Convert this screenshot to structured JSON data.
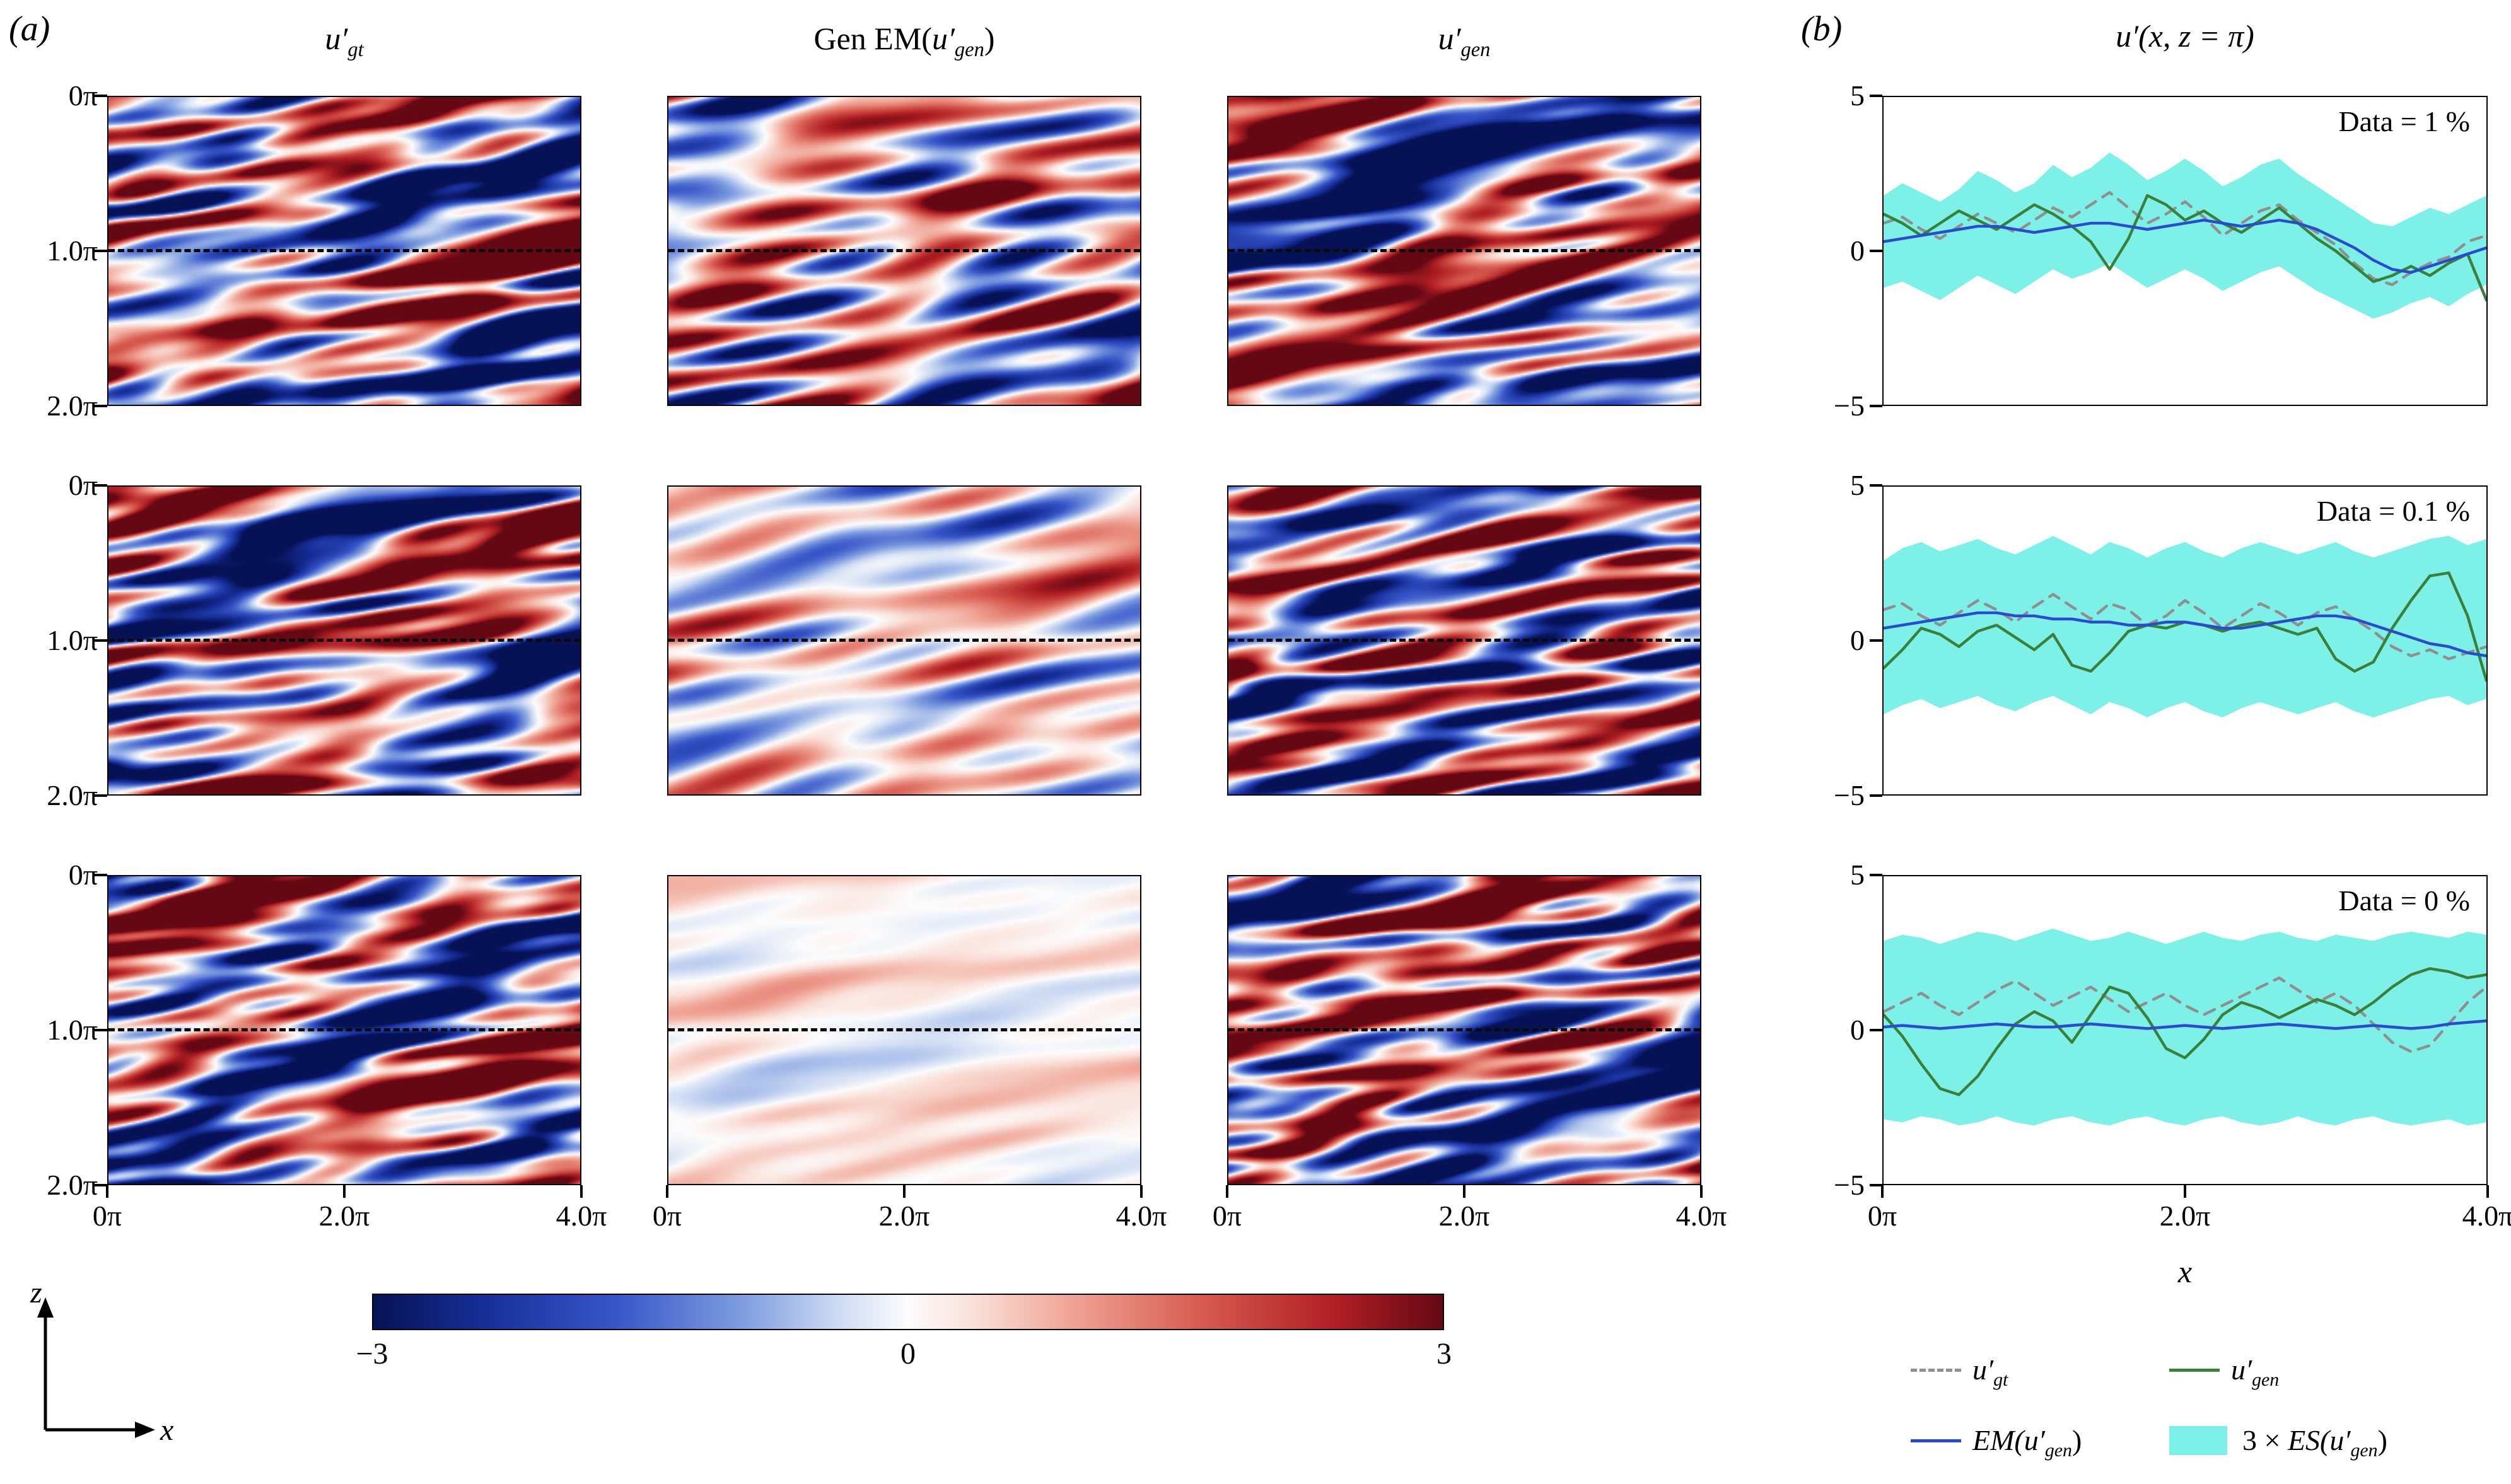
{
  "figure": {
    "panel_a": {
      "label": "(a)",
      "col_titles": [
        {
          "base": "u",
          "prime": "′",
          "sub": "gt"
        },
        {
          "pre": "Gen EM(",
          "base": "u",
          "prime": "′",
          "sub": "gen",
          "post": ")"
        },
        {
          "base": "u",
          "prime": "′",
          "sub": "gen"
        }
      ],
      "y_ticks": [
        "0π",
        "1.0π",
        "2.0π"
      ],
      "x_ticks": [
        "0π",
        "2.0π",
        "4.0π"
      ],
      "colorbar_ticks": [
        "−3",
        "0",
        "3"
      ],
      "axis_vertical": "z",
      "axis_horizontal": "x"
    },
    "panel_b": {
      "label": "(b)",
      "title": "u′(x, z = π)",
      "y_ticks": [
        "5",
        "0",
        "−5"
      ],
      "x_ticks": [
        "0π",
        "2.0π",
        "4.0π"
      ],
      "x_label": "x",
      "annotations": [
        "Data = 1 %",
        "Data = 0.1 %",
        "Data = 0 %"
      ],
      "legend": [
        {
          "parts": {
            "base": "u",
            "prime": "′",
            "sub": "gt"
          }
        },
        {
          "parts": {
            "base": "u",
            "prime": "′",
            "sub": "gen"
          }
        },
        {
          "parts": {
            "pre_i": "EM(",
            "base": "u",
            "prime": "′",
            "sub": "gen",
            "post": ")"
          }
        },
        {
          "parts": {
            "pre": "3 × ",
            "pre_i": "ES(",
            "base": "u",
            "prime": "′",
            "sub": "gen",
            "post": ")"
          }
        }
      ]
    }
  },
  "colors": {
    "green_line": "#3a8038",
    "blue_line": "#2a4bd0",
    "gray_dash": "#8f8f8f",
    "cyan_band": "#7df0e8",
    "colormap": [
      [
        -1,
        6,
        18,
        85
      ],
      [
        -0.8,
        22,
        45,
        150
      ],
      [
        -0.55,
        55,
        85,
        200
      ],
      [
        -0.3,
        130,
        160,
        225
      ],
      [
        -0.12,
        210,
        222,
        244
      ],
      [
        0,
        252,
        252,
        252
      ],
      [
        0.12,
        250,
        225,
        218
      ],
      [
        0.3,
        240,
        165,
        150
      ],
      [
        0.55,
        215,
        90,
        80
      ],
      [
        0.8,
        175,
        30,
        35
      ],
      [
        1,
        100,
        8,
        20
      ]
    ]
  },
  "chart_data": [
    {
      "type": "line",
      "title": "Data = 1 %",
      "xlabel": "x",
      "ylabel": "u'(x, z = π)",
      "xlim": [
        0,
        4
      ],
      "ylim": [
        -5,
        5
      ],
      "x_unit": "π",
      "x_start": 0,
      "x_step": 0.125,
      "legend_position": "bottom",
      "series": [
        {
          "name": "u_gt",
          "style": "dashed-gray",
          "values": [
            0.9,
            1.1,
            0.7,
            0.4,
            0.8,
            1.2,
            0.9,
            0.6,
            1.0,
            1.4,
            1.1,
            1.5,
            1.9,
            1.4,
            0.9,
            1.2,
            1.6,
            1.1,
            0.5,
            0.9,
            1.3,
            1.5,
            1.0,
            0.6,
            0.2,
            -0.4,
            -0.9,
            -1.1,
            -0.7,
            -0.4,
            -0.2,
            0.3,
            0.5
          ]
        },
        {
          "name": "u_gen",
          "style": "green",
          "values": [
            1.2,
            0.9,
            0.5,
            0.9,
            1.3,
            1.0,
            0.7,
            1.1,
            1.5,
            1.2,
            0.8,
            0.3,
            -0.6,
            0.4,
            1.8,
            1.5,
            1.0,
            1.3,
            0.9,
            0.6,
            1.0,
            1.4,
            0.9,
            0.4,
            0.0,
            -0.5,
            -1.0,
            -0.8,
            -0.5,
            -0.8,
            -0.4,
            -0.1,
            -1.6
          ]
        },
        {
          "name": "EM_u_gen",
          "style": "blue",
          "values": [
            0.3,
            0.4,
            0.5,
            0.6,
            0.7,
            0.8,
            0.8,
            0.7,
            0.6,
            0.7,
            0.8,
            0.9,
            0.9,
            0.8,
            0.7,
            0.8,
            0.9,
            1.0,
            0.9,
            0.8,
            0.9,
            1.0,
            0.9,
            0.7,
            0.4,
            0.1,
            -0.3,
            -0.6,
            -0.7,
            -0.5,
            -0.3,
            -0.1,
            0.1
          ]
        },
        {
          "name": "3xES_u_gen",
          "style": "cyan-band",
          "upper": [
            1.8,
            2.2,
            1.9,
            1.6,
            2.0,
            2.6,
            2.3,
            1.9,
            2.2,
            2.8,
            2.4,
            2.7,
            3.2,
            2.8,
            2.3,
            2.6,
            3.0,
            2.6,
            2.1,
            2.4,
            2.8,
            3.0,
            2.5,
            2.1,
            1.7,
            1.3,
            0.9,
            0.8,
            1.1,
            1.4,
            1.2,
            1.5,
            1.8
          ],
          "lower": [
            -1.2,
            -1.0,
            -1.3,
            -1.6,
            -1.2,
            -0.8,
            -1.1,
            -1.4,
            -1.0,
            -0.6,
            -0.9,
            -0.7,
            -0.4,
            -0.8,
            -1.2,
            -0.9,
            -0.6,
            -0.9,
            -1.3,
            -1.0,
            -0.7,
            -0.5,
            -0.9,
            -1.3,
            -1.6,
            -1.9,
            -2.2,
            -2.0,
            -1.7,
            -1.5,
            -1.8,
            -1.4,
            -1.1
          ]
        }
      ]
    },
    {
      "type": "line",
      "title": "Data = 0.1 %",
      "xlabel": "x",
      "ylabel": "u'(x, z = π)",
      "xlim": [
        0,
        4
      ],
      "ylim": [
        -5,
        5
      ],
      "x_unit": "π",
      "x_start": 0,
      "x_step": 0.125,
      "series": [
        {
          "name": "u_gt",
          "style": "dashed-gray",
          "values": [
            1.0,
            1.2,
            0.8,
            0.5,
            0.9,
            1.3,
            1.0,
            0.6,
            1.1,
            1.5,
            1.1,
            0.7,
            1.2,
            1.0,
            0.5,
            0.8,
            1.3,
            0.9,
            0.4,
            0.8,
            1.2,
            0.9,
            0.5,
            0.9,
            1.1,
            0.7,
            0.3,
            -0.2,
            -0.5,
            -0.3,
            -0.6,
            -0.4,
            -0.2
          ]
        },
        {
          "name": "u_gen",
          "style": "green",
          "values": [
            -0.9,
            -0.3,
            0.4,
            0.2,
            -0.2,
            0.3,
            0.5,
            0.1,
            -0.3,
            0.2,
            -0.8,
            -1.0,
            -0.4,
            0.3,
            0.5,
            0.4,
            0.6,
            0.5,
            0.3,
            0.5,
            0.6,
            0.4,
            0.2,
            0.4,
            -0.6,
            -1.0,
            -0.7,
            0.4,
            1.3,
            2.1,
            2.2,
            0.8,
            -1.3
          ]
        },
        {
          "name": "EM_u_gen",
          "style": "blue",
          "values": [
            0.4,
            0.5,
            0.6,
            0.7,
            0.8,
            0.9,
            0.9,
            0.8,
            0.8,
            0.7,
            0.7,
            0.6,
            0.6,
            0.5,
            0.5,
            0.6,
            0.6,
            0.5,
            0.4,
            0.4,
            0.5,
            0.6,
            0.7,
            0.8,
            0.8,
            0.7,
            0.5,
            0.3,
            0.1,
            -0.1,
            -0.2,
            -0.4,
            -0.5
          ]
        },
        {
          "name": "3xES_u_gen",
          "style": "cyan-band",
          "upper": [
            2.6,
            3.0,
            3.2,
            2.9,
            3.1,
            3.3,
            3.0,
            2.8,
            3.1,
            3.4,
            3.1,
            2.8,
            3.2,
            3.0,
            2.7,
            3.0,
            3.2,
            2.9,
            2.7,
            3.0,
            3.2,
            3.0,
            2.8,
            3.0,
            3.2,
            2.9,
            2.7,
            2.9,
            3.1,
            3.3,
            3.4,
            3.1,
            3.3
          ],
          "lower": [
            -2.4,
            -2.1,
            -1.9,
            -2.2,
            -2.0,
            -1.8,
            -2.1,
            -2.3,
            -2.0,
            -1.8,
            -2.1,
            -2.4,
            -2.0,
            -2.2,
            -2.5,
            -2.2,
            -2.0,
            -2.3,
            -2.5,
            -2.2,
            -2.0,
            -2.2,
            -2.4,
            -2.2,
            -2.0,
            -2.3,
            -2.5,
            -2.3,
            -2.1,
            -1.9,
            -1.8,
            -2.1,
            -1.9
          ]
        }
      ]
    },
    {
      "type": "line",
      "title": "Data = 0 %",
      "xlabel": "x",
      "ylabel": "u'(x, z = π)",
      "xlim": [
        0,
        4
      ],
      "ylim": [
        -5,
        5
      ],
      "x_unit": "π",
      "x_start": 0,
      "x_step": 0.125,
      "series": [
        {
          "name": "u_gt",
          "style": "dashed-gray",
          "values": [
            0.6,
            0.9,
            1.2,
            0.8,
            0.5,
            0.9,
            1.3,
            1.6,
            1.2,
            0.8,
            1.1,
            1.4,
            1.0,
            0.6,
            0.9,
            1.2,
            0.8,
            0.5,
            0.8,
            1.1,
            1.4,
            1.7,
            1.3,
            0.9,
            1.2,
            0.8,
            0.2,
            -0.4,
            -0.7,
            -0.5,
            0.2,
            0.9,
            1.4
          ]
        },
        {
          "name": "u_gen",
          "style": "green",
          "values": [
            0.5,
            -0.2,
            -1.1,
            -1.9,
            -2.1,
            -1.5,
            -0.6,
            0.2,
            0.6,
            0.3,
            -0.4,
            0.5,
            1.4,
            1.2,
            0.4,
            -0.6,
            -0.9,
            -0.3,
            0.5,
            0.9,
            0.7,
            0.4,
            0.7,
            1.0,
            0.8,
            0.5,
            0.9,
            1.4,
            1.8,
            2.0,
            1.9,
            1.7,
            1.8
          ]
        },
        {
          "name": "EM_u_gen",
          "style": "blue",
          "values": [
            0.1,
            0.15,
            0.1,
            0.05,
            0.1,
            0.15,
            0.2,
            0.15,
            0.1,
            0.1,
            0.15,
            0.2,
            0.15,
            0.1,
            0.05,
            0.1,
            0.15,
            0.1,
            0.05,
            0.1,
            0.15,
            0.2,
            0.15,
            0.1,
            0.05,
            0.1,
            0.15,
            0.1,
            0.05,
            0.1,
            0.2,
            0.25,
            0.3
          ]
        },
        {
          "name": "3xES_u_gen",
          "style": "cyan-band",
          "upper": [
            2.9,
            3.1,
            3.0,
            2.8,
            3.0,
            3.2,
            3.1,
            2.9,
            3.1,
            3.3,
            3.1,
            2.9,
            3.0,
            3.2,
            3.0,
            2.8,
            3.0,
            3.2,
            3.0,
            2.9,
            3.1,
            3.2,
            3.0,
            2.9,
            3.1,
            3.0,
            2.9,
            3.1,
            3.2,
            3.1,
            3.0,
            3.2,
            3.1
          ],
          "lower": [
            -2.9,
            -3.0,
            -2.8,
            -2.9,
            -3.1,
            -3.0,
            -2.8,
            -3.0,
            -3.1,
            -2.9,
            -2.8,
            -3.0,
            -3.1,
            -2.9,
            -2.8,
            -3.0,
            -3.1,
            -2.9,
            -2.8,
            -3.0,
            -3.1,
            -3.0,
            -2.8,
            -3.0,
            -3.1,
            -2.9,
            -2.8,
            -3.0,
            -3.1,
            -3.0,
            -2.9,
            -3.1,
            -3.0
          ]
        }
      ]
    },
    {
      "type": "heatmap_grid",
      "clim": [
        -3,
        3
      ],
      "x_domain": [
        "0π",
        "4.0π"
      ],
      "z_domain": [
        "0π",
        "2.0π"
      ],
      "dashed_line_z": "1.0π",
      "rows": [
        "Data = 1 %",
        "Data = 0.1 %",
        "Data = 0 %"
      ],
      "cols": [
        "u_gt",
        "Gen EM(u_gen)",
        "u_gen"
      ],
      "panels": [
        [
          {
            "seed": 11,
            "gain": 0.85,
            "bias": 0,
            "fx": 4.5,
            "fz": 13,
            "modes": 64
          },
          {
            "seed": 21,
            "gain": 0.6,
            "bias": 0.08,
            "fx": 3.5,
            "fz": 9,
            "modes": 48
          },
          {
            "seed": 31,
            "gain": 0.85,
            "bias": 0,
            "fx": 4.5,
            "fz": 13,
            "modes": 64
          }
        ],
        [
          {
            "seed": 12,
            "gain": 0.85,
            "bias": 0,
            "fx": 4.5,
            "fz": 13,
            "modes": 64
          },
          {
            "seed": 22,
            "gain": 0.34,
            "bias": 0.05,
            "fx": 3.0,
            "fz": 8,
            "modes": 40
          },
          {
            "seed": 32,
            "gain": 0.85,
            "bias": 0,
            "fx": 4.5,
            "fz": 13,
            "modes": 64
          }
        ],
        [
          {
            "seed": 13,
            "gain": 0.85,
            "bias": 0,
            "fx": 4.5,
            "fz": 13,
            "modes": 64
          },
          {
            "seed": 23,
            "gain": 0.12,
            "bias": 0.05,
            "fx": 3.0,
            "fz": 9,
            "modes": 40
          },
          {
            "seed": 33,
            "gain": 0.85,
            "bias": 0,
            "fx": 4.5,
            "fz": 13,
            "modes": 64
          }
        ]
      ]
    }
  ]
}
